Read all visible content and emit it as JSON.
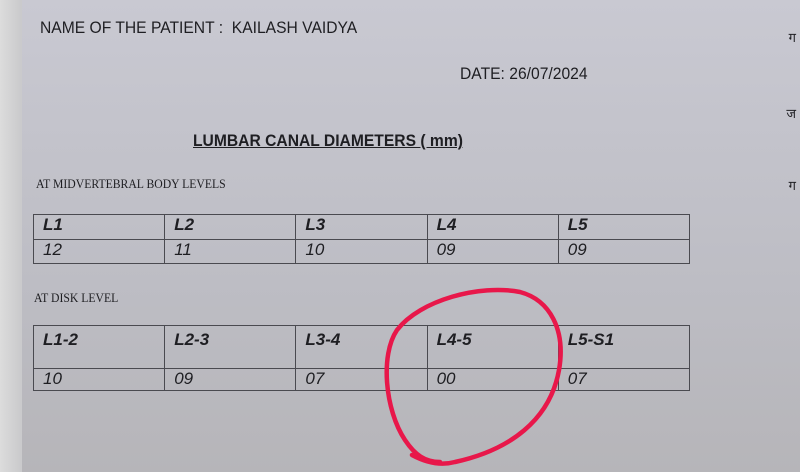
{
  "patient": {
    "label": "NAME OF THE PATIENT :",
    "name": "KAILASH VAIDYA"
  },
  "date": {
    "label": "DATE:",
    "value": "26/07/2024"
  },
  "title": "LUMBAR CANAL DIAMETERS ( mm)",
  "midvertebral": {
    "heading": "AT MIDVERTEBRAL BODY LEVELS",
    "levels": [
      "L1",
      "L2",
      "L3",
      "L4",
      "L5"
    ],
    "values": [
      "12",
      "11",
      "10",
      "09",
      "09"
    ]
  },
  "disk": {
    "heading": "AT DISK LEVEL",
    "levels": [
      "L1-2",
      "L2-3",
      "L3-4",
      "L4-5",
      "L5-S1"
    ],
    "values": [
      "10",
      "09",
      "07",
      "00",
      "07"
    ]
  },
  "annotation": {
    "shape": "hand-drawn circle",
    "color": "#e8174a",
    "target": "L4-5"
  },
  "margin_glyphs": [
    "ग",
    "ज",
    "ग"
  ]
}
